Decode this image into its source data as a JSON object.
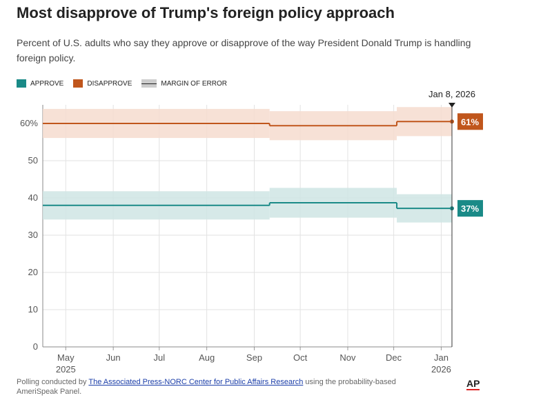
{
  "chart_data": {
    "type": "step-line",
    "title": "Most disapprove of Trump's foreign policy approach",
    "subtitle": "Percent of U.S. adults who say they approve or disapprove of the way President Donald Trump is handling foreign policy.",
    "legend_moe": "MARGIN OF ERROR",
    "annotation": "Jan 8, 2026",
    "x": [
      "2025-04-16",
      "2025-09-11",
      "2025-12-03",
      "2026-01-08"
    ],
    "series": [
      {
        "name": "APPROVE",
        "color": "#1a8a87",
        "band_color": "#cfe5e4",
        "values": [
          38,
          38.7,
          37.2,
          37.2
        ],
        "errors": [
          3.8,
          4,
          3.8,
          3.8
        ],
        "value_labels": [
          null,
          null,
          null,
          "37%"
        ]
      },
      {
        "name": "DISAPPROVE",
        "color": "#c0561c",
        "band_color": "#f6dccf",
        "values": [
          60,
          59.4,
          60.5,
          60.5
        ],
        "errors": [
          3.9,
          3.9,
          3.9,
          3.9
        ],
        "value_labels": [
          null,
          null,
          null,
          "61%"
        ]
      }
    ],
    "xlim": [
      "2025-04-16",
      "2026-01-08"
    ],
    "xticks": [
      {
        "value": "2025-05-01",
        "label": "May",
        "year": "2025"
      },
      {
        "value": "2025-06-01",
        "label": "Jun"
      },
      {
        "value": "2025-07-01",
        "label": "Jul"
      },
      {
        "value": "2025-08-01",
        "label": "Aug"
      },
      {
        "value": "2025-09-01",
        "label": "Sep"
      },
      {
        "value": "2025-10-01",
        "label": "Oct"
      },
      {
        "value": "2025-11-01",
        "label": "Nov"
      },
      {
        "value": "2025-12-01",
        "label": "Dec"
      },
      {
        "value": "2026-01-01",
        "label": "Jan",
        "year": "2026"
      }
    ],
    "ylim": [
      0,
      65
    ],
    "yticks": [
      0,
      10,
      20,
      30,
      40,
      50,
      {
        "value": 60,
        "label": "60%"
      }
    ],
    "grid": true
  },
  "footer": {
    "prefix": "Polling conducted by",
    "link": "The Associated Press-NORC Center for Public Affairs Research",
    "suffix": "using the probability-based AmeriSpeak Panel.",
    "logo": "AP"
  }
}
